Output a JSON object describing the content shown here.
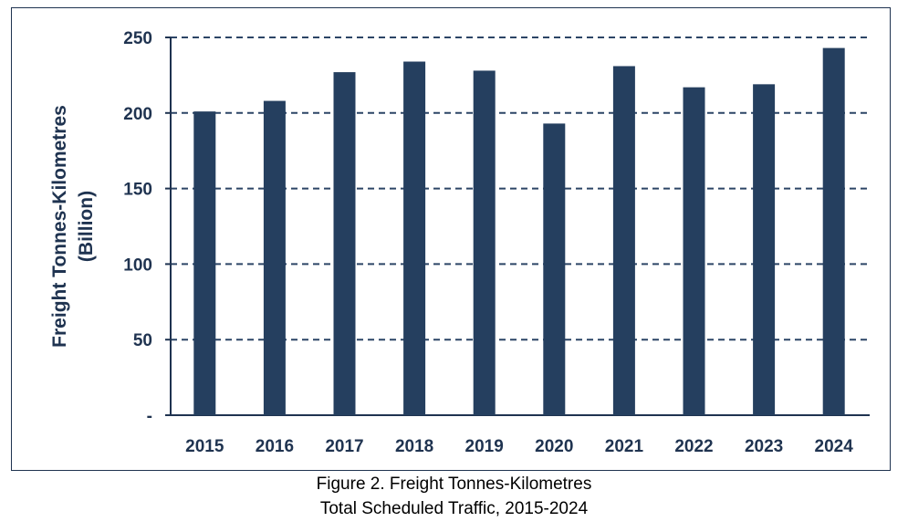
{
  "chart_data": {
    "type": "bar",
    "title": "Figure 2. Freight Tonnes-Kilometres",
    "subtitle": "Total Scheduled Traffic, 2015-2024",
    "xlabel": "",
    "ylabel_line1": "Freight Tonnes-Kilometres",
    "ylabel_line2": "(Billion)",
    "categories": [
      "2015",
      "2016",
      "2017",
      "2018",
      "2019",
      "2020",
      "2021",
      "2022",
      "2023",
      "2024"
    ],
    "values": [
      201,
      208,
      227,
      234,
      228,
      193,
      231,
      217,
      219,
      243
    ],
    "ylim": [
      0,
      250
    ],
    "yticks": [
      0,
      50,
      100,
      150,
      200,
      250
    ],
    "ytick_labels": [
      "-",
      "50",
      "100",
      "150",
      "200",
      "250"
    ],
    "grid": true,
    "bar_color": "#253f5f"
  }
}
